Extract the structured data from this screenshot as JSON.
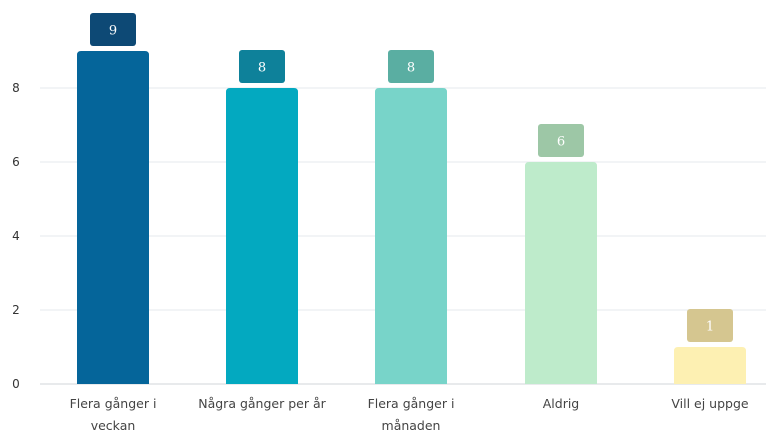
{
  "chart_data": {
    "type": "bar",
    "categories": [
      "Flera gånger i veckan",
      "Några gånger per år",
      "Flera gånger i månaden",
      "Aldrig",
      "Vill ej uppge"
    ],
    "category_lines": [
      [
        "Flera gånger i",
        "veckan"
      ],
      [
        "Några gånger per år"
      ],
      [
        "Flera gånger i",
        "månaden"
      ],
      [
        "Aldrig"
      ],
      [
        "Vill ej uppge"
      ]
    ],
    "values": [
      9,
      8,
      8,
      6,
      1
    ],
    "data_labels": [
      "9",
      "8",
      "8",
      "6",
      "1"
    ],
    "yticks": [
      0,
      2,
      4,
      6,
      8
    ],
    "ylim": [
      0,
      10
    ],
    "grid": true,
    "legend": "none",
    "title": "",
    "xlabel": "",
    "ylabel": "",
    "colors": {
      "bars": [
        "#05659A",
        "#03A9C0",
        "#78D4C9",
        "#BEEBCB",
        "#FDF0B2"
      ],
      "labels": [
        "#0D4975",
        "#0E819A",
        "#5AAEA2",
        "#9DC7A6",
        "#D5C690"
      ],
      "grid": "#E6EAEE",
      "axis": "#D0D4D8"
    }
  }
}
